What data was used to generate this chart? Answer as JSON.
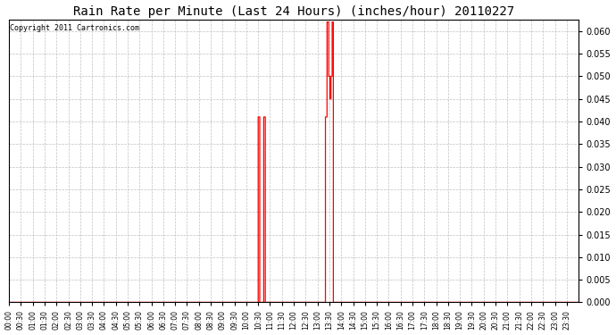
{
  "title": "Rain Rate per Minute (Last 24 Hours) (inches/hour) 20110227",
  "copyright_text": "Copyright 2011 Cartronics.com",
  "line_color": "#ff0000",
  "bg_color": "#ffffff",
  "grid_color": "#c0c0c0",
  "plot_bg_color": "#ffffff",
  "ylim": [
    0.0,
    0.0625
  ],
  "yticks": [
    0.0,
    0.005,
    0.01,
    0.015,
    0.02,
    0.025,
    0.03,
    0.035,
    0.04,
    0.045,
    0.05,
    0.055,
    0.06
  ],
  "total_minutes": 1440,
  "xlabel_interval_minutes": 30,
  "data_points": [
    [
      0,
      0.0
    ],
    [
      629,
      0.0
    ],
    [
      630,
      0.041
    ],
    [
      633,
      0.041
    ],
    [
      634,
      0.0
    ],
    [
      643,
      0.0
    ],
    [
      644,
      0.041
    ],
    [
      647,
      0.041
    ],
    [
      648,
      0.0
    ],
    [
      799,
      0.0
    ],
    [
      800,
      0.041
    ],
    [
      803,
      0.041
    ],
    [
      804,
      0.062
    ],
    [
      807,
      0.062
    ],
    [
      808,
      0.05
    ],
    [
      810,
      0.05
    ],
    [
      811,
      0.045
    ],
    [
      813,
      0.045
    ],
    [
      814,
      0.05
    ],
    [
      816,
      0.05
    ],
    [
      817,
      0.062
    ],
    [
      819,
      0.062
    ],
    [
      820,
      0.0
    ],
    [
      1439,
      0.0
    ]
  ]
}
